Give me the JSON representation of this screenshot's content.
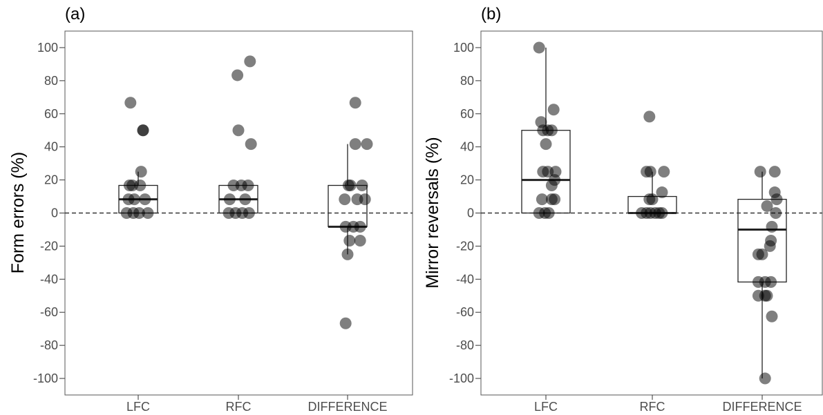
{
  "chart_data": [
    {
      "type": "box",
      "panel_tag": "(a)",
      "ylabel": "Form errors (%)",
      "xlabel": "",
      "categories": [
        "LFC",
        "RFC",
        "DIFFERENCE"
      ],
      "ylim": [
        -110,
        110
      ],
      "yticks": [
        "100",
        "80",
        "60",
        "40",
        "20",
        "0",
        "-20",
        "-40",
        "-60",
        "-80",
        "-100"
      ],
      "ytick_values": [
        100,
        80,
        60,
        40,
        20,
        0,
        -20,
        -40,
        -60,
        -80,
        -100
      ],
      "reference_line": 0,
      "grid": false,
      "boxes": [
        {
          "category": "LFC",
          "q1": 0,
          "median": 8.3,
          "q3": 16.7,
          "whisker_low": 0,
          "whisker_high": 25
        },
        {
          "category": "RFC",
          "q1": 0,
          "median": 8.3,
          "q3": 16.7,
          "whisker_low": 0,
          "whisker_high": 16.7
        },
        {
          "category": "DIFFERENCE",
          "q1": -8.3,
          "median": -8.3,
          "q3": 16.7,
          "whisker_low": -25,
          "whisker_high": 41.7
        }
      ],
      "points": [
        {
          "category": "LFC",
          "jitter": -0.16,
          "y": 66.7
        },
        {
          "category": "LFC",
          "jitter": 0.1,
          "y": 50
        },
        {
          "category": "LFC",
          "jitter": 0.1,
          "y": 50
        },
        {
          "category": "LFC",
          "jitter": 0.06,
          "y": 25
        },
        {
          "category": "LFC",
          "jitter": -0.18,
          "y": 16.7
        },
        {
          "category": "LFC",
          "jitter": 0.04,
          "y": 16.7
        },
        {
          "category": "LFC",
          "jitter": -0.12,
          "y": 16.7
        },
        {
          "category": "LFC",
          "jitter": -0.2,
          "y": 8.3
        },
        {
          "category": "LFC",
          "jitter": -0.08,
          "y": 8.3
        },
        {
          "category": "LFC",
          "jitter": 0.14,
          "y": 8.3
        },
        {
          "category": "LFC",
          "jitter": -0.24,
          "y": 0
        },
        {
          "category": "LFC",
          "jitter": -0.1,
          "y": 0
        },
        {
          "category": "LFC",
          "jitter": 0.02,
          "y": 0
        },
        {
          "category": "LFC",
          "jitter": 0.2,
          "y": 0
        },
        {
          "category": "RFC",
          "jitter": -0.02,
          "y": 83.3
        },
        {
          "category": "RFC",
          "jitter": 0.24,
          "y": 91.7
        },
        {
          "category": "RFC",
          "jitter": 0.0,
          "y": 50
        },
        {
          "category": "RFC",
          "jitter": 0.26,
          "y": 41.7
        },
        {
          "category": "RFC",
          "jitter": -0.1,
          "y": 16.7
        },
        {
          "category": "RFC",
          "jitter": 0.06,
          "y": 16.7
        },
        {
          "category": "RFC",
          "jitter": 0.2,
          "y": 16.7
        },
        {
          "category": "RFC",
          "jitter": -0.18,
          "y": 8.3
        },
        {
          "category": "RFC",
          "jitter": 0.14,
          "y": 8.3
        },
        {
          "category": "RFC",
          "jitter": -0.2,
          "y": 0
        },
        {
          "category": "RFC",
          "jitter": -0.06,
          "y": 0
        },
        {
          "category": "RFC",
          "jitter": 0.08,
          "y": 0
        },
        {
          "category": "RFC",
          "jitter": 0.22,
          "y": 0
        },
        {
          "category": "DIFFERENCE",
          "jitter": 0.16,
          "y": 66.7
        },
        {
          "category": "DIFFERENCE",
          "jitter": 0.16,
          "y": 41.7
        },
        {
          "category": "DIFFERENCE",
          "jitter": 0.4,
          "y": 41.7
        },
        {
          "category": "DIFFERENCE",
          "jitter": 0.02,
          "y": 16.7
        },
        {
          "category": "DIFFERENCE",
          "jitter": 0.3,
          "y": 16.7
        },
        {
          "category": "DIFFERENCE",
          "jitter": 0.06,
          "y": 16.7
        },
        {
          "category": "DIFFERENCE",
          "jitter": -0.06,
          "y": 8.3
        },
        {
          "category": "DIFFERENCE",
          "jitter": 0.2,
          "y": 8.3
        },
        {
          "category": "DIFFERENCE",
          "jitter": 0.36,
          "y": 8.3
        },
        {
          "category": "DIFFERENCE",
          "jitter": -0.04,
          "y": -8.3
        },
        {
          "category": "DIFFERENCE",
          "jitter": 0.12,
          "y": -8.3
        },
        {
          "category": "DIFFERENCE",
          "jitter": 0.26,
          "y": -8.3
        },
        {
          "category": "DIFFERENCE",
          "jitter": 0.04,
          "y": -16.7
        },
        {
          "category": "DIFFERENCE",
          "jitter": 0.26,
          "y": -16.7
        },
        {
          "category": "DIFFERENCE",
          "jitter": 0.0,
          "y": -25
        },
        {
          "category": "DIFFERENCE",
          "jitter": -0.04,
          "y": -66.7
        }
      ]
    },
    {
      "type": "box",
      "panel_tag": "(b)",
      "ylabel": "Mirror reversals (%)",
      "xlabel": "",
      "categories": [
        "LFC",
        "RFC",
        "DIFFERENCE"
      ],
      "ylim": [
        -110,
        110
      ],
      "yticks": [
        "100",
        "80",
        "60",
        "40",
        "20",
        "0",
        "-20",
        "-40",
        "-60",
        "-80",
        "-100"
      ],
      "ytick_values": [
        100,
        80,
        60,
        40,
        20,
        0,
        -20,
        -40,
        -60,
        -80,
        -100
      ],
      "reference_line": 0,
      "grid": false,
      "boxes": [
        {
          "category": "LFC",
          "q1": 0,
          "median": 20,
          "q3": 50,
          "whisker_low": 0,
          "whisker_high": 100
        },
        {
          "category": "RFC",
          "q1": 0,
          "median": 0,
          "q3": 10,
          "whisker_low": 0,
          "whisker_high": 25
        },
        {
          "category": "DIFFERENCE",
          "q1": -41.7,
          "median": -10,
          "q3": 8.3,
          "whisker_low": -100,
          "whisker_high": 25
        }
      ],
      "points": [
        {
          "category": "LFC",
          "jitter": -0.14,
          "y": 100
        },
        {
          "category": "LFC",
          "jitter": 0.16,
          "y": 62.5
        },
        {
          "category": "LFC",
          "jitter": -0.1,
          "y": 55
        },
        {
          "category": "LFC",
          "jitter": -0.06,
          "y": 50
        },
        {
          "category": "LFC",
          "jitter": 0.04,
          "y": 50
        },
        {
          "category": "LFC",
          "jitter": 0.12,
          "y": 50
        },
        {
          "category": "LFC",
          "jitter": 0.0,
          "y": 41.7
        },
        {
          "category": "LFC",
          "jitter": -0.06,
          "y": 25
        },
        {
          "category": "LFC",
          "jitter": 0.04,
          "y": 25
        },
        {
          "category": "LFC",
          "jitter": 0.2,
          "y": 25
        },
        {
          "category": "LFC",
          "jitter": 0.18,
          "y": 20
        },
        {
          "category": "LFC",
          "jitter": 0.12,
          "y": 16.7
        },
        {
          "category": "LFC",
          "jitter": -0.08,
          "y": 8.3
        },
        {
          "category": "LFC",
          "jitter": 0.12,
          "y": 8.3
        },
        {
          "category": "LFC",
          "jitter": 0.18,
          "y": 8.3
        },
        {
          "category": "LFC",
          "jitter": -0.14,
          "y": 0
        },
        {
          "category": "LFC",
          "jitter": -0.02,
          "y": 0
        },
        {
          "category": "LFC",
          "jitter": 0.06,
          "y": 0
        },
        {
          "category": "RFC",
          "jitter": -0.06,
          "y": 58.3
        },
        {
          "category": "RFC",
          "jitter": -0.12,
          "y": 25
        },
        {
          "category": "RFC",
          "jitter": -0.04,
          "y": 25
        },
        {
          "category": "RFC",
          "jitter": 0.24,
          "y": 25
        },
        {
          "category": "RFC",
          "jitter": 0.2,
          "y": 12.5
        },
        {
          "category": "RFC",
          "jitter": -0.06,
          "y": 8.3
        },
        {
          "category": "RFC",
          "jitter": 0.0,
          "y": 8.3
        },
        {
          "category": "RFC",
          "jitter": -0.22,
          "y": 0
        },
        {
          "category": "RFC",
          "jitter": -0.12,
          "y": 0
        },
        {
          "category": "RFC",
          "jitter": -0.04,
          "y": 0
        },
        {
          "category": "RFC",
          "jitter": 0.06,
          "y": 0
        },
        {
          "category": "RFC",
          "jitter": 0.14,
          "y": 0
        },
        {
          "category": "RFC",
          "jitter": 0.2,
          "y": 0
        },
        {
          "category": "DIFFERENCE",
          "jitter": -0.04,
          "y": 25
        },
        {
          "category": "DIFFERENCE",
          "jitter": 0.26,
          "y": 25
        },
        {
          "category": "DIFFERENCE",
          "jitter": 0.26,
          "y": 12.5
        },
        {
          "category": "DIFFERENCE",
          "jitter": 0.3,
          "y": 8.3
        },
        {
          "category": "DIFFERENCE",
          "jitter": 0.1,
          "y": 4.2
        },
        {
          "category": "DIFFERENCE",
          "jitter": 0.28,
          "y": 0
        },
        {
          "category": "DIFFERENCE",
          "jitter": 0.2,
          "y": -8.3
        },
        {
          "category": "DIFFERENCE",
          "jitter": 0.18,
          "y": -16.7
        },
        {
          "category": "DIFFERENCE",
          "jitter": 0.16,
          "y": -20
        },
        {
          "category": "DIFFERENCE",
          "jitter": 0.0,
          "y": -25
        },
        {
          "category": "DIFFERENCE",
          "jitter": -0.08,
          "y": -25
        },
        {
          "category": "DIFFERENCE",
          "jitter": -0.08,
          "y": -41.7
        },
        {
          "category": "DIFFERENCE",
          "jitter": 0.06,
          "y": -41.7
        },
        {
          "category": "DIFFERENCE",
          "jitter": 0.18,
          "y": -41.7
        },
        {
          "category": "DIFFERENCE",
          "jitter": 0.06,
          "y": -50
        },
        {
          "category": "DIFFERENCE",
          "jitter": -0.08,
          "y": -50
        },
        {
          "category": "DIFFERENCE",
          "jitter": 0.1,
          "y": -50
        },
        {
          "category": "DIFFERENCE",
          "jitter": 0.2,
          "y": -62.5
        },
        {
          "category": "DIFFERENCE",
          "jitter": 0.06,
          "y": -100
        }
      ]
    }
  ],
  "colors": {
    "point_fill": "#000000",
    "point_opacity": 0.5,
    "box_stroke": "#222222",
    "box_fill": "#ffffff",
    "panel_border": "#555555",
    "reference_line": "#333333",
    "tick_text": "#4d4d4d"
  }
}
